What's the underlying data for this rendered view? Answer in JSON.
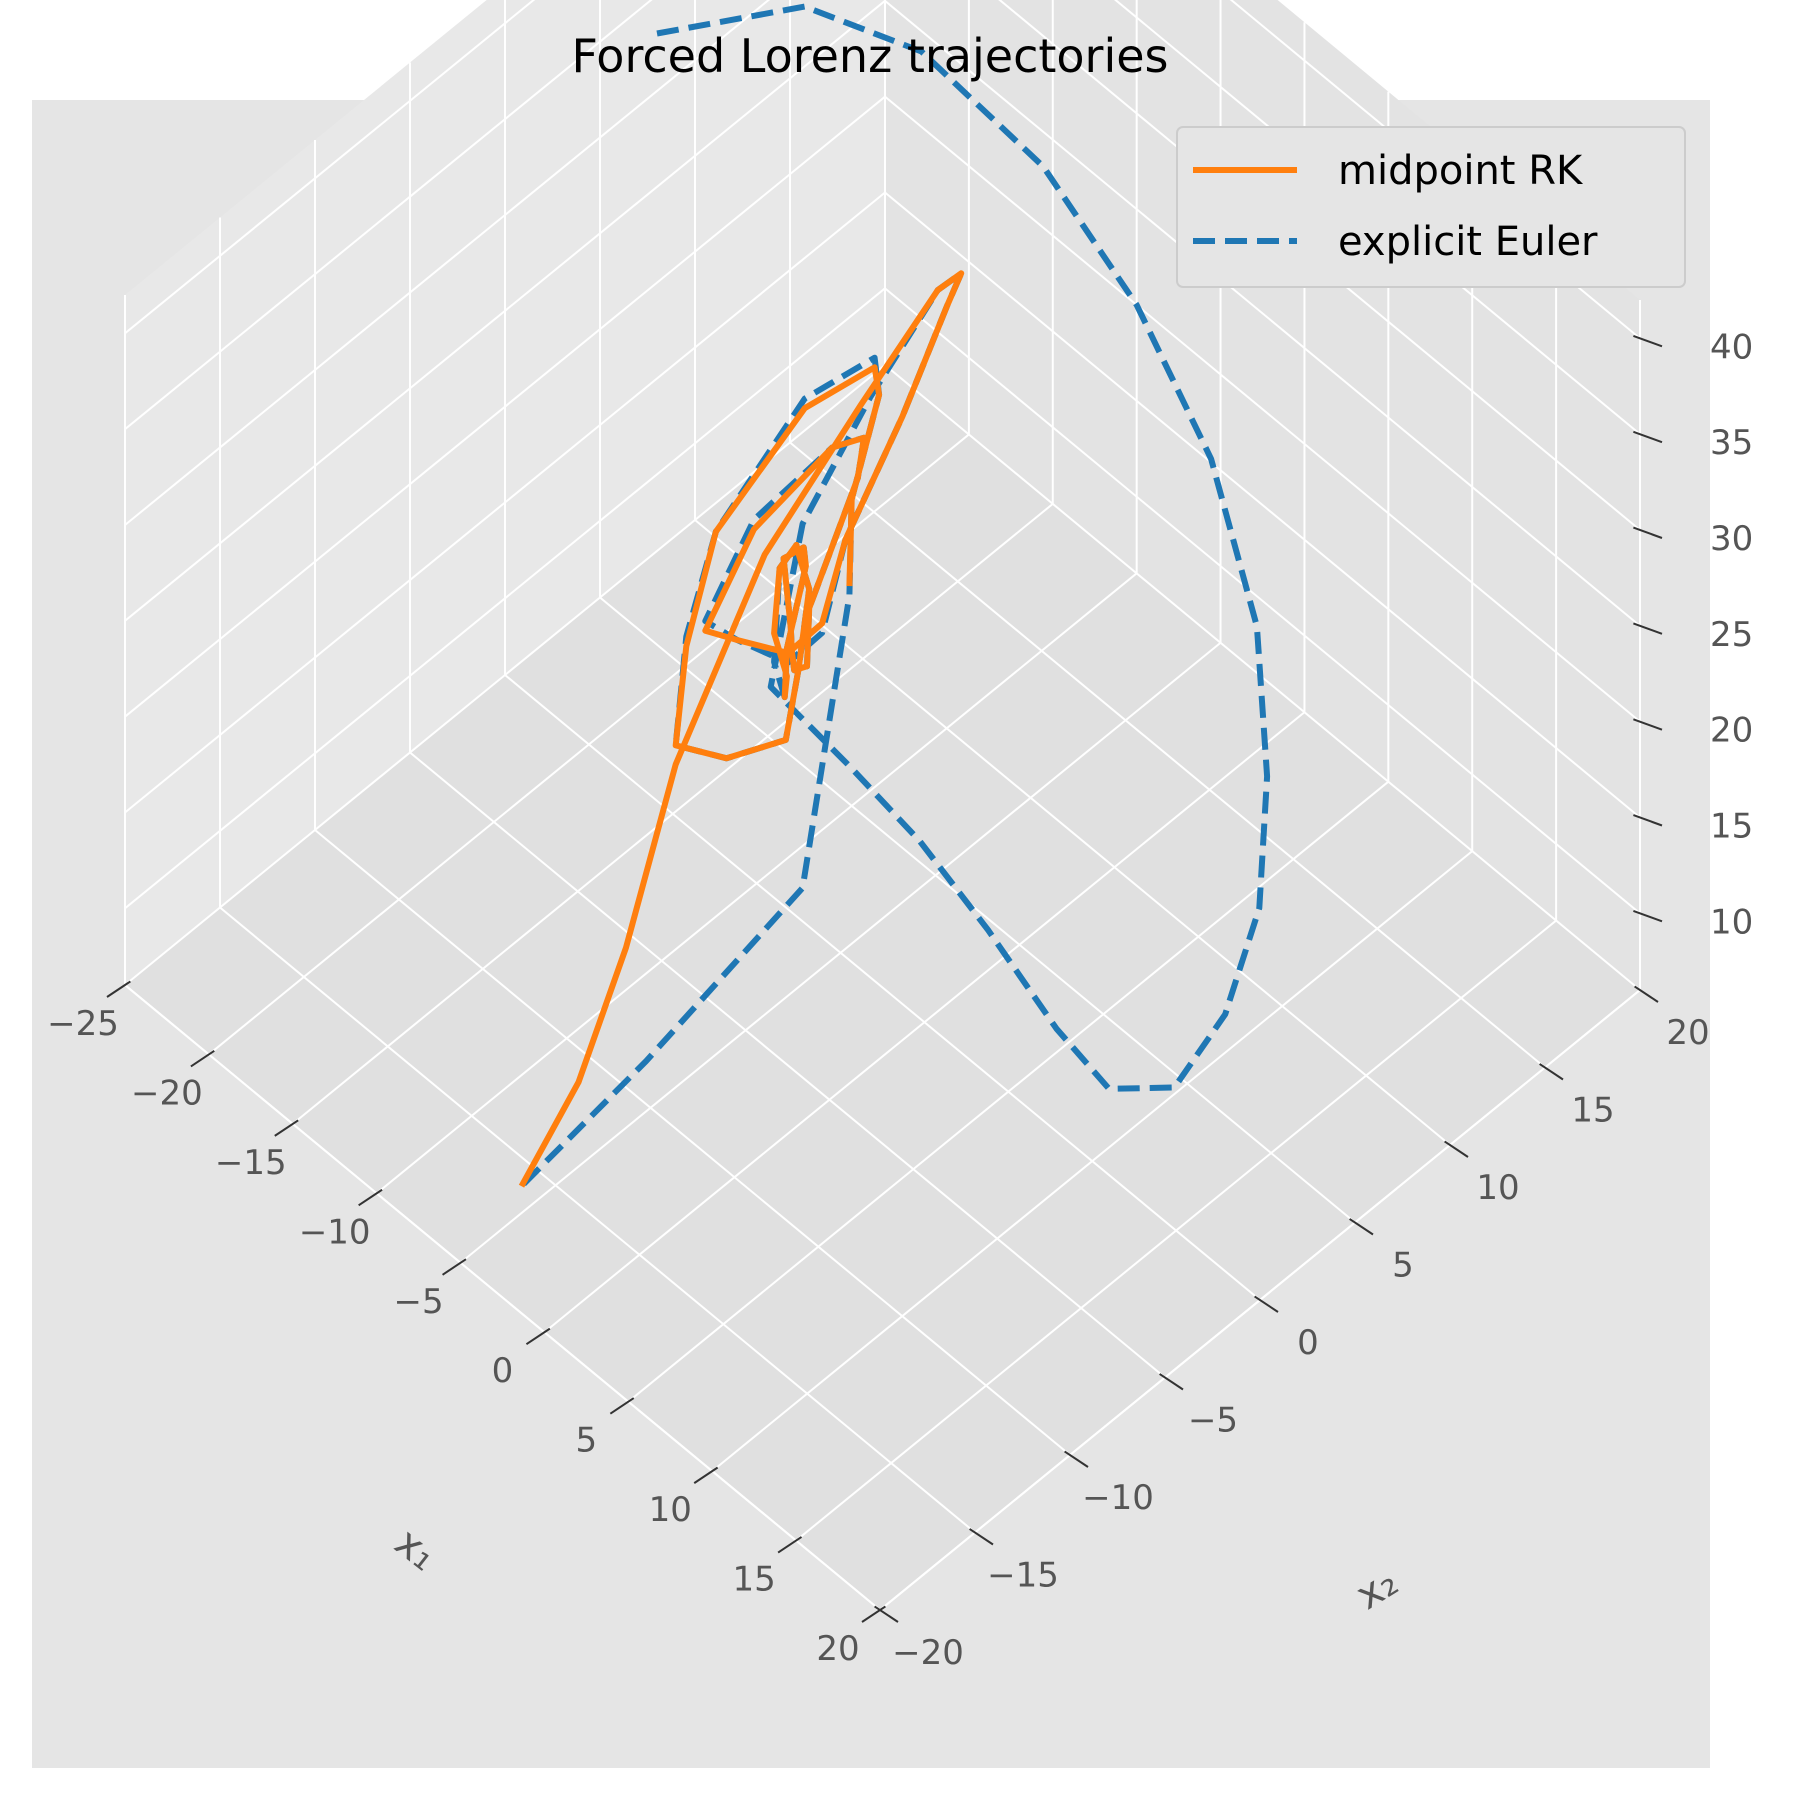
{
  "chart_data": {
    "type": "line",
    "title": "Forced Lorenz trajectories",
    "xlabel": "x₁",
    "ylabel": "x₂",
    "zlabel": "",
    "projection": "3d",
    "xlim": [
      -25,
      20
    ],
    "ylim": [
      -20,
      20
    ],
    "zlim": [
      6,
      42
    ],
    "xticks": [
      "−25",
      "−20",
      "−15",
      "−10",
      "−5",
      "0",
      "5",
      "10",
      "15",
      "20"
    ],
    "yticks": [
      "−20",
      "−15",
      "−10",
      "−5",
      "0",
      "5",
      "10",
      "15",
      "20"
    ],
    "zticks": [
      "10",
      "15",
      "20",
      "25",
      "30",
      "35",
      "40"
    ],
    "grid": true,
    "legend_position": "top-right",
    "series": [
      {
        "name": "midpoint RK",
        "color": "#ff7f0e",
        "style": "solid",
        "points": [
          [
            -2.5,
            -19.0,
            11.0
          ],
          [
            -2.5,
            -16.0,
            14.0
          ],
          [
            -2.5,
            -13.5,
            19.0
          ],
          [
            -3.5,
            -10.0,
            25.0
          ],
          [
            -5.0,
            -4.0,
            30.0
          ],
          [
            -5.5,
            1.5,
            33.0
          ],
          [
            -6.0,
            6.0,
            35.0
          ],
          [
            -8.0,
            9.0,
            32.0
          ],
          [
            -10.0,
            10.0,
            28.0
          ],
          [
            -11.5,
            9.0,
            22.0
          ],
          [
            -11.5,
            6.0,
            18.0
          ],
          [
            -9.5,
            3.0,
            17.5
          ],
          [
            -7.0,
            -1.0,
            21.0
          ],
          [
            -5.5,
            -5.0,
            26.0
          ],
          [
            -4.0,
            -8.0,
            30.0
          ],
          [
            -4.5,
            -5.0,
            32.5
          ],
          [
            -5.5,
            0.0,
            32.0
          ],
          [
            -7.0,
            3.0,
            29.0
          ],
          [
            -8.5,
            4.0,
            25.0
          ],
          [
            -8.0,
            1.0,
            21.0
          ],
          [
            -7.0,
            0.0,
            19.5
          ],
          [
            -5.5,
            -2.0,
            22.0
          ],
          [
            -4.5,
            -3.0,
            24.5
          ],
          [
            -4.0,
            -3.5,
            26.5
          ],
          [
            -5.0,
            -3.0,
            29.0
          ],
          [
            -5.5,
            -1.5,
            28.0
          ],
          [
            -6.5,
            -0.5,
            25.5
          ],
          [
            -6.5,
            -1.5,
            22.0
          ],
          [
            -5.5,
            -2.5,
            21.0
          ],
          [
            -4.8,
            -3.0,
            23.0
          ],
          [
            -5.0,
            -3.5,
            25.5
          ],
          [
            -5.8,
            -2.5,
            27.5
          ],
          [
            -6.5,
            -1.0,
            27.0
          ],
          [
            -7.5,
            0.0,
            25.0
          ],
          [
            -8.0,
            1.0,
            22.0
          ],
          [
            -7.5,
            0.0,
            19.0
          ],
          [
            -6.0,
            -2.0,
            18.0
          ],
          [
            -5.0,
            -6.0,
            21.0
          ],
          [
            -3.5,
            -10.0,
            26.0
          ],
          [
            -4.0,
            -9.0,
            30.0
          ],
          [
            -4.5,
            -7.0,
            34.0
          ],
          [
            -6.0,
            -1.0,
            34.5
          ],
          [
            -7.5,
            4.0,
            31.5
          ],
          [
            -9.5,
            6.0,
            27.0
          ],
          [
            -10.0,
            5.0,
            22.0
          ],
          [
            -9.0,
            4.0,
            19.0
          ]
        ]
      },
      {
        "name": "explicit Euler",
        "color": "#1f77b4",
        "style": "dashed",
        "points": [
          [
            -25.0,
            8.0,
            33.0
          ],
          [
            -23.0,
            14.0,
            31.0
          ],
          [
            -20.0,
            17.5,
            28.0
          ],
          [
            -15.0,
            19.5,
            24.0
          ],
          [
            -10.0,
            20.0,
            20.0
          ],
          [
            -5.0,
            19.5,
            16.0
          ],
          [
            0.0,
            17.5,
            12.5
          ],
          [
            4.0,
            14.5,
            10.0
          ],
          [
            7.5,
            11.0,
            8.5
          ],
          [
            10.0,
            7.0,
            8.0
          ],
          [
            11.5,
            3.0,
            8.5
          ],
          [
            11.0,
            0.0,
            10.5
          ],
          [
            9.0,
            -1.0,
            13.0
          ],
          [
            5.5,
            -1.5,
            16.0
          ],
          [
            2.0,
            -2.0,
            18.5
          ],
          [
            -1.0,
            -3.0,
            21.0
          ],
          [
            -3.5,
            -5.0,
            25.0
          ],
          [
            -5.0,
            -2.0,
            30.0
          ],
          [
            -5.5,
            2.0,
            33.0
          ],
          [
            -6.0,
            6.0,
            35.0
          ],
          [
            -8.0,
            9.0,
            32.0
          ],
          [
            -10.0,
            10.0,
            28.0
          ],
          [
            -11.5,
            9.0,
            22.0
          ],
          [
            -11.5,
            6.0,
            18.0
          ],
          [
            -9.5,
            3.0,
            17.0
          ],
          [
            -7.0,
            -1.0,
            20.5
          ],
          [
            -5.5,
            -5.0,
            26.0
          ],
          [
            -4.0,
            -8.0,
            30.5
          ],
          [
            -4.5,
            -5.0,
            33.0
          ],
          [
            -5.5,
            0.0,
            32.0
          ],
          [
            -7.0,
            3.0,
            29.0
          ],
          [
            -8.5,
            4.0,
            25.0
          ],
          [
            -8.0,
            1.0,
            21.0
          ],
          [
            -7.0,
            0.0,
            19.5
          ],
          [
            -5.5,
            -2.0,
            22.0
          ],
          [
            -4.5,
            -3.0,
            24.5
          ],
          [
            -4.0,
            -3.5,
            26.5
          ],
          [
            -5.0,
            -3.0,
            29.0
          ],
          [
            -5.5,
            -1.5,
            28.0
          ],
          [
            -6.5,
            -0.5,
            25.5
          ],
          [
            -6.5,
            -1.5,
            22.0
          ],
          [
            -5.5,
            -2.5,
            21.0
          ],
          [
            -5.0,
            -3.5,
            24.0
          ],
          [
            -5.8,
            -2.5,
            27.5
          ],
          [
            -6.5,
            -1.0,
            27.0
          ],
          [
            -7.5,
            0.0,
            25.0
          ],
          [
            -8.0,
            1.0,
            22.0
          ],
          [
            -7.5,
            0.0,
            19.0
          ],
          [
            -6.0,
            -2.0,
            18.0
          ],
          [
            -5.0,
            -6.0,
            21.0
          ],
          [
            -3.5,
            -10.0,
            26.0
          ],
          [
            -4.0,
            -9.0,
            30.5
          ],
          [
            -4.5,
            -7.0,
            34.0
          ],
          [
            -6.0,
            -1.0,
            35.0
          ],
          [
            -7.5,
            4.0,
            32.0
          ],
          [
            -9.5,
            6.0,
            27.0
          ],
          [
            -10.0,
            5.0,
            22.0
          ],
          [
            -9.0,
            4.0,
            18.5
          ],
          [
            -5.0,
            -2.0,
            11.0
          ],
          [
            -3.0,
            -12.0,
            11.5
          ],
          [
            -2.5,
            -19.0,
            11.0
          ]
        ]
      }
    ]
  }
}
